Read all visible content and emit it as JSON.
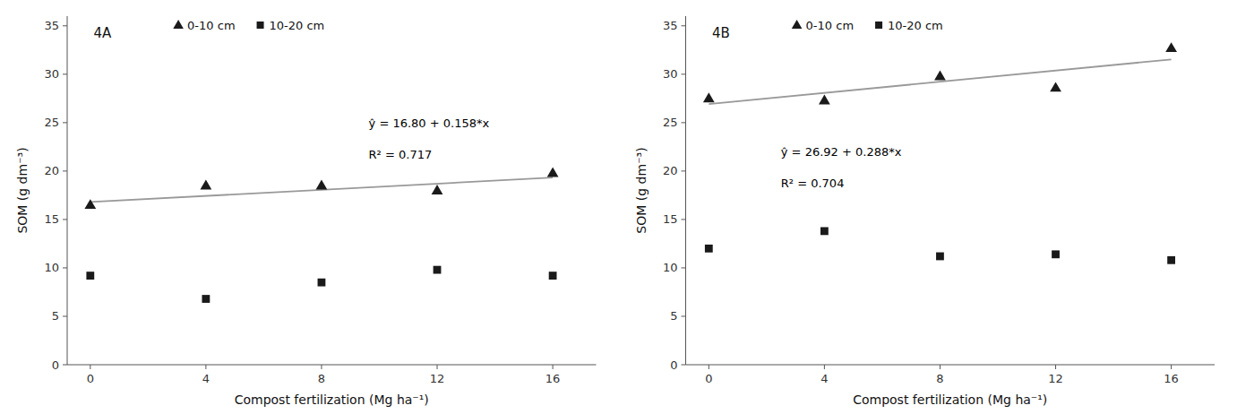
{
  "chart_data": [
    {
      "type": "scatter",
      "title": "4A",
      "x": [
        0,
        4,
        8,
        12,
        16
      ],
      "x_label": "Compost fertilization (Mg ha⁻¹)",
      "y_label": "SOM (g dm⁻³)",
      "xlim": [
        -0.8,
        17.5
      ],
      "xticks": [
        0,
        4,
        8,
        12,
        16
      ],
      "ylim": [
        0,
        36
      ],
      "yticks": [
        0,
        5,
        10,
        15,
        20,
        25,
        30,
        35
      ],
      "grid": false,
      "legend": "top",
      "series": [
        {
          "name": "0-10 cm",
          "type": "scatter",
          "marker": "triangle",
          "color": "#1a1a1a",
          "values": [
            16.5,
            18.5,
            18.5,
            18.0,
            19.8
          ]
        },
        {
          "name": "10-20 cm",
          "type": "scatter",
          "marker": "square",
          "color": "#1a1a1a",
          "values": [
            9.2,
            6.8,
            8.5,
            9.8,
            9.2
          ]
        },
        {
          "type": "line",
          "color": "#999999",
          "x": [
            0,
            16
          ],
          "values": [
            16.8,
            19.328
          ]
        }
      ],
      "annotations": [
        "ŷ = 16.80 + 0.158*x",
        "R² = 0.717"
      ]
    },
    {
      "type": "scatter",
      "title": "4B",
      "x": [
        0,
        4,
        8,
        12,
        16
      ],
      "x_label": "Compost fertilization (Mg ha⁻¹)",
      "y_label": "SOM (g dm⁻³)",
      "xlim": [
        -0.8,
        17.5
      ],
      "xticks": [
        0,
        4,
        8,
        12,
        16
      ],
      "ylim": [
        0,
        36
      ],
      "yticks": [
        0,
        5,
        10,
        15,
        20,
        25,
        30,
        35
      ],
      "grid": false,
      "legend": "top",
      "series": [
        {
          "name": "0-10 cm",
          "type": "scatter",
          "marker": "triangle",
          "color": "#1a1a1a",
          "values": [
            27.5,
            27.3,
            29.8,
            28.6,
            32.7
          ]
        },
        {
          "name": "10-20 cm",
          "type": "scatter",
          "marker": "square",
          "color": "#1a1a1a",
          "values": [
            12.0,
            13.8,
            11.2,
            11.4,
            10.8
          ]
        },
        {
          "type": "line",
          "color": "#999999",
          "x": [
            0,
            16
          ],
          "values": [
            26.92,
            31.528
          ]
        }
      ],
      "annotations": [
        "ŷ = 26.92 + 0.288*x",
        "R² = 0.704"
      ]
    }
  ]
}
